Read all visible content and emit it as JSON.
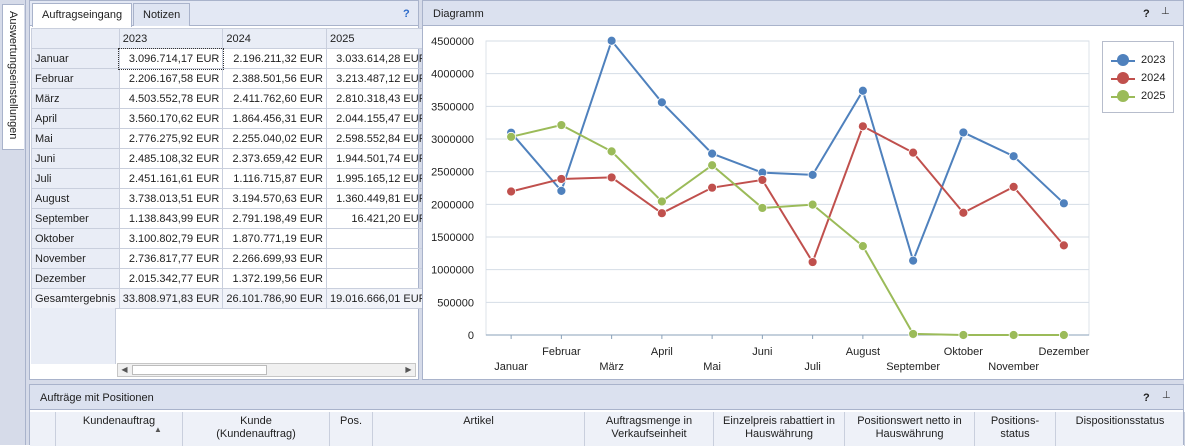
{
  "sidebar": {
    "tab_label": "Auswertungseinstellungen"
  },
  "left_panel": {
    "tabs": [
      {
        "label": "Auftragseingang"
      },
      {
        "label": "Notizen"
      }
    ],
    "help": "?",
    "columns": [
      "2023",
      "2024",
      "2025"
    ],
    "rows": [
      {
        "label": "Januar",
        "values": [
          "3.096.714,17 EUR",
          "2.196.211,32 EUR",
          "3.033.614,28 EUR"
        ]
      },
      {
        "label": "Februar",
        "values": [
          "2.206.167,58 EUR",
          "2.388.501,56 EUR",
          "3.213.487,12 EUR"
        ]
      },
      {
        "label": "März",
        "values": [
          "4.503.552,78 EUR",
          "2.411.762,60 EUR",
          "2.810.318,43 EUR"
        ]
      },
      {
        "label": "April",
        "values": [
          "3.560.170,62 EUR",
          "1.864.456,31 EUR",
          "2.044.155,47 EUR"
        ]
      },
      {
        "label": "Mai",
        "values": [
          "2.776.275,92 EUR",
          "2.255.040,02 EUR",
          "2.598.552,84 EUR"
        ]
      },
      {
        "label": "Juni",
        "values": [
          "2.485.108,32 EUR",
          "2.373.659,42 EUR",
          "1.944.501,74 EUR"
        ]
      },
      {
        "label": "Juli",
        "values": [
          "2.451.161,61 EUR",
          "1.116.715,87 EUR",
          "1.995.165,12 EUR"
        ]
      },
      {
        "label": "August",
        "values": [
          "3.738.013,51 EUR",
          "3.194.570,63 EUR",
          "1.360.449,81 EUR"
        ]
      },
      {
        "label": "September",
        "values": [
          "1.138.843,99 EUR",
          "2.791.198,49 EUR",
          "16.421,20 EUR"
        ]
      },
      {
        "label": "Oktober",
        "values": [
          "3.100.802,79 EUR",
          "1.870.771,19 EUR",
          ""
        ]
      },
      {
        "label": "November",
        "values": [
          "2.736.817,77 EUR",
          "2.266.699,93 EUR",
          ""
        ]
      },
      {
        "label": "Dezember",
        "values": [
          "2.015.342,77 EUR",
          "1.372.199,56 EUR",
          ""
        ]
      }
    ],
    "total": {
      "label": "Gesamtergebnis",
      "values": [
        "33.808.971,83 EUR",
        "26.101.786,90 EUR",
        "19.016.666,01 EUR"
      ]
    }
  },
  "chart_panel": {
    "title": "Diagramm",
    "help": "?",
    "pin": "📌"
  },
  "chart_data": {
    "type": "line",
    "categories": [
      "Januar",
      "Februar",
      "März",
      "April",
      "Mai",
      "Juni",
      "Juli",
      "August",
      "September",
      "Oktober",
      "November",
      "Dezember"
    ],
    "series": [
      {
        "name": "2023",
        "color": "#4f81bd",
        "values": [
          3096714.17,
          2206167.58,
          4503552.78,
          3560170.62,
          2776275.92,
          2485108.32,
          2451161.61,
          3738013.51,
          1138843.99,
          3100802.79,
          2736817.77,
          2015342.77
        ]
      },
      {
        "name": "2024",
        "color": "#c0504d",
        "values": [
          2196211.32,
          2388501.56,
          2411762.6,
          1864456.31,
          2255040.02,
          2373659.42,
          1116715.87,
          3194570.63,
          2791198.49,
          1870771.19,
          2266699.93,
          1372199.56
        ]
      },
      {
        "name": "2025",
        "color": "#9bbb59",
        "values": [
          3033614.28,
          3213487.12,
          2810318.43,
          2044155.47,
          2598552.84,
          1944501.74,
          1995165.12,
          1360449.81,
          16421.2,
          0,
          0,
          0
        ]
      }
    ],
    "yticks": [
      "0",
      "500000",
      "1000000",
      "1500000",
      "2000000",
      "2500000",
      "3000000",
      "3500000",
      "4000000",
      "4500000"
    ],
    "ylim": [
      0,
      4500000
    ],
    "grid": true,
    "legend": "top-right"
  },
  "bottom_panel": {
    "title": "Aufträge mit Positionen",
    "help": "?",
    "pin": "📌",
    "columns": [
      {
        "label": "Kundenauftrag"
      },
      {
        "label": "Kunde\n(Kundenauftrag)"
      },
      {
        "label": "Pos."
      },
      {
        "label": "Artikel"
      },
      {
        "label": "Auftragsmenge in\nVerkaufseinheit"
      },
      {
        "label": "Einzelpreis rabattiert in\nHauswährung"
      },
      {
        "label": "Positionswert netto in\nHauswährung"
      },
      {
        "label": "Positions-\nstatus"
      },
      {
        "label": "Dispositionsstatus"
      }
    ]
  }
}
